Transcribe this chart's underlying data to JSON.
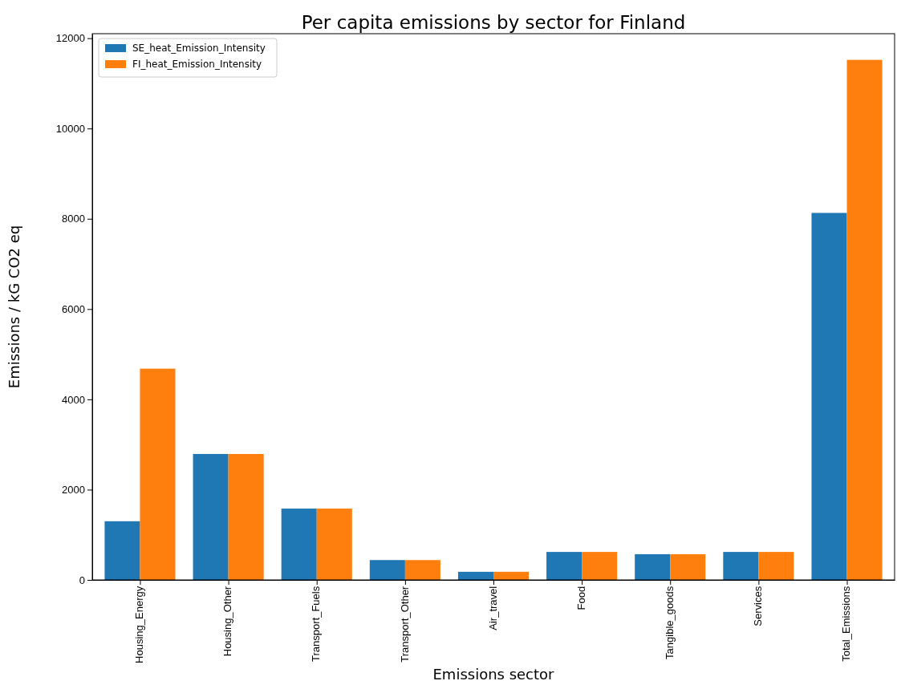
{
  "chart_data": {
    "type": "bar",
    "title": "Per capita emissions by sector for Finland",
    "xlabel": "Emissions sector",
    "ylabel": "Emissions / kG CO2 eq",
    "categories": [
      "Housing_Energy",
      "Housing_Other",
      "Transport_Fuels",
      "Transport_Other",
      "Air_travel",
      "Food",
      "Tangible_goods",
      "Services",
      "Total_Emissions"
    ],
    "series": [
      {
        "name": "SE_heat_Emission_Intensity",
        "color": "#1f77b4",
        "values": [
          1300,
          2790,
          1580,
          440,
          180,
          620,
          570,
          620,
          8130
        ]
      },
      {
        "name": "FI_heat_Emission_Intensity",
        "color": "#ff7f0e",
        "values": [
          4680,
          2790,
          1580,
          440,
          180,
          620,
          570,
          620,
          11520
        ]
      }
    ],
    "ylim": [
      0,
      12100
    ],
    "yticks": [
      0,
      2000,
      4000,
      6000,
      8000,
      10000,
      12000
    ],
    "grid": false,
    "legend": "top left"
  }
}
